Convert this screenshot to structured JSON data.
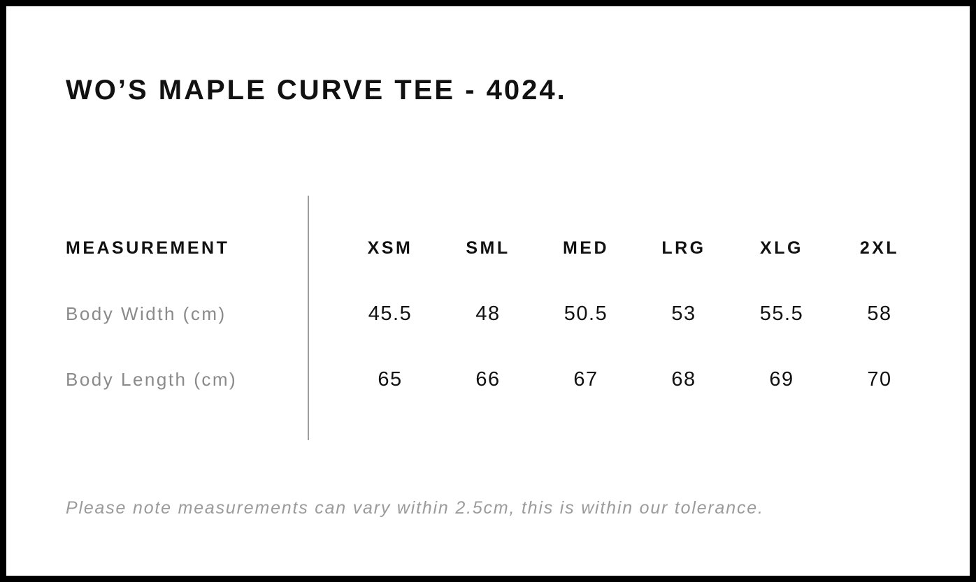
{
  "title": "WO’S MAPLE CURVE TEE - 4024.",
  "size_chart": {
    "measurement_header": "MEASUREMENT",
    "sizes": [
      "XSM",
      "SML",
      "MED",
      "LRG",
      "XLG",
      "2XL"
    ],
    "rows": [
      {
        "label": "Body Width (cm)",
        "values": [
          "45.5",
          "48",
          "50.5",
          "53",
          "55.5",
          "58"
        ]
      },
      {
        "label": "Body Length (cm)",
        "values": [
          "65",
          "66",
          "67",
          "68",
          "69",
          "70"
        ]
      }
    ]
  },
  "footnote": "Please note measurements can vary within 2.5cm, this is within our tolerance.",
  "colors": {
    "text": "#111111",
    "muted_label": "#8a8a8a",
    "footnote": "#9b9b9b",
    "divider": "#9e9e9e",
    "frame_border": "#000000",
    "background": "#ffffff"
  },
  "chart_data": {
    "type": "table",
    "title": "WO’S MAPLE CURVE TEE - 4024.",
    "columns": [
      "MEASUREMENT",
      "XSM",
      "SML",
      "MED",
      "LRG",
      "XLG",
      "2XL"
    ],
    "rows": [
      [
        "Body Width (cm)",
        45.5,
        48,
        50.5,
        53,
        55.5,
        58
      ],
      [
        "Body Length (cm)",
        65,
        66,
        67,
        68,
        69,
        70
      ]
    ],
    "footnote": "Please note measurements can vary within 2.5cm, this is within our tolerance."
  }
}
